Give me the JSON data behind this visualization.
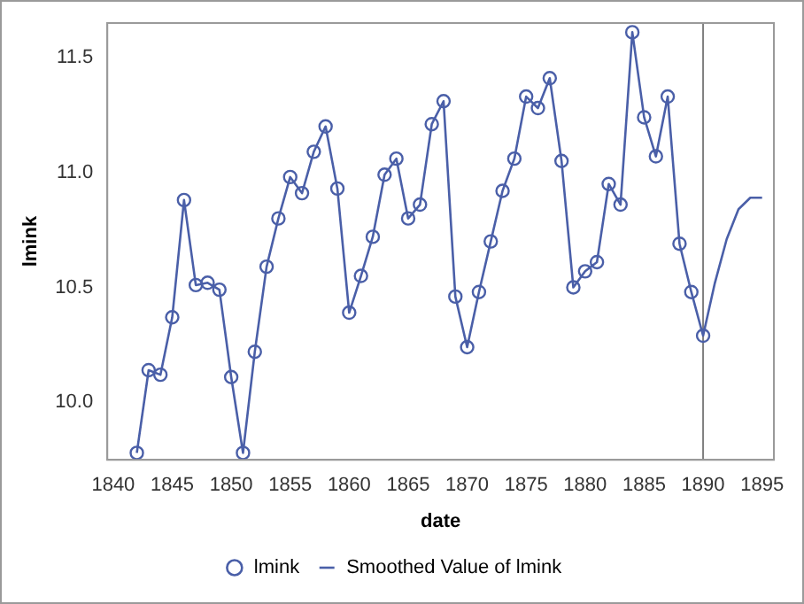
{
  "chart_data": {
    "type": "line",
    "xlabel": "date",
    "ylabel": "lmink",
    "xlim": [
      1839.5,
      1896
    ],
    "xticks": [
      1840,
      1845,
      1850,
      1855,
      1860,
      1865,
      1870,
      1875,
      1880,
      1885,
      1890,
      1895
    ],
    "ylim": [
      9.75,
      11.65
    ],
    "yticks": [
      {
        "value": 10,
        "label": "10.0"
      },
      {
        "value": 10.5,
        "label": "10.5"
      },
      {
        "value": 11.0,
        "label": "11.0"
      },
      11.5
    ],
    "grid": false,
    "legend": "bottom",
    "ref_lines": [
      {
        "axis": "x",
        "value": 1890,
        "color": "#7f7f7f"
      }
    ],
    "series": [
      {
        "name": "lmink",
        "type": "scatter",
        "marker": "circle",
        "color": "#4a5fa8",
        "x": [
          1842,
          1843,
          1844,
          1845,
          1846,
          1847,
          1848,
          1849,
          1850,
          1851,
          1852,
          1853,
          1854,
          1855,
          1856,
          1857,
          1858,
          1859,
          1860,
          1861,
          1862,
          1863,
          1864,
          1865,
          1866,
          1867,
          1868,
          1869,
          1870,
          1871,
          1872,
          1873,
          1874,
          1875,
          1876,
          1877,
          1878,
          1879,
          1880,
          1881,
          1882,
          1883,
          1884,
          1885,
          1886,
          1887,
          1888,
          1889,
          1890
        ],
        "values": [
          9.78,
          10.14,
          10.12,
          10.37,
          10.88,
          10.51,
          10.52,
          10.49,
          10.11,
          9.78,
          10.22,
          10.59,
          10.8,
          10.98,
          10.91,
          11.09,
          11.2,
          10.93,
          10.39,
          10.55,
          10.72,
          10.99,
          11.06,
          10.8,
          10.86,
          11.21,
          11.31,
          10.46,
          10.24,
          10.48,
          10.7,
          10.92,
          11.06,
          11.33,
          11.28,
          11.41,
          11.05,
          10.5,
          10.57,
          10.61,
          10.95,
          10.86,
          11.61,
          11.24,
          11.07,
          11.33,
          10.69,
          10.48,
          10.29
        ]
      },
      {
        "name": "Smoothed Value of lmink",
        "marker": "none",
        "line_style": "solid",
        "color": "#4a5fa8",
        "x": [
          1842,
          1843,
          1844,
          1845,
          1846,
          1847,
          1848,
          1849,
          1850,
          1851,
          1852,
          1853,
          1854,
          1855,
          1856,
          1857,
          1858,
          1859,
          1860,
          1861,
          1862,
          1863,
          1864,
          1865,
          1866,
          1867,
          1868,
          1869,
          1870,
          1871,
          1872,
          1873,
          1874,
          1875,
          1876,
          1877,
          1878,
          1879,
          1880,
          1881,
          1882,
          1883,
          1884,
          1885,
          1886,
          1887,
          1888,
          1889,
          1890,
          1891,
          1892,
          1893,
          1894,
          1895
        ],
        "values": [
          9.78,
          10.14,
          10.12,
          10.37,
          10.88,
          10.51,
          10.52,
          10.49,
          10.11,
          9.78,
          10.22,
          10.59,
          10.8,
          10.98,
          10.91,
          11.09,
          11.2,
          10.93,
          10.39,
          10.55,
          10.72,
          10.99,
          11.06,
          10.8,
          10.86,
          11.21,
          11.31,
          10.46,
          10.24,
          10.48,
          10.7,
          10.92,
          11.06,
          11.33,
          11.28,
          11.41,
          11.05,
          10.5,
          10.57,
          10.61,
          10.95,
          10.86,
          11.61,
          11.24,
          11.07,
          11.33,
          10.69,
          10.48,
          10.29,
          10.52,
          10.71,
          10.84,
          10.89,
          10.89
        ]
      }
    ]
  }
}
